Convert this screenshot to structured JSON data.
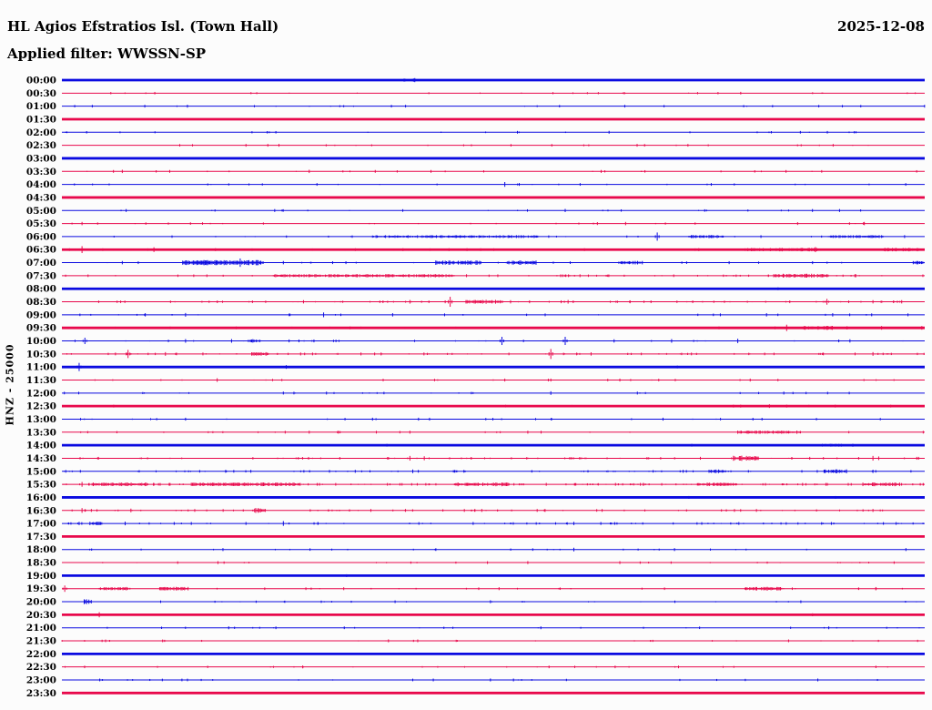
{
  "header": {
    "station": "HL Agios Efstratios Isl. (Town Hall)",
    "filter_label": "Applied filter: WWSSN-SP",
    "date": "2025-12-08"
  },
  "axis": {
    "left_label": "HNZ - 25000"
  },
  "colors": {
    "trace_blue": "#0a0ae0",
    "trace_red": "#e8084b",
    "text": "#000000",
    "background": "#fcfcfc"
  },
  "chart_data": {
    "type": "line",
    "subtype": "helicorder-seismogram",
    "title": "HL Agios Efstratios Isl. (Town Hall)",
    "date": "2025-12-08",
    "filter": "WWSSN-SP",
    "ylabel": "HNZ - 25000",
    "row_duration_minutes": 30,
    "x_range_minutes": [
      0,
      30
    ],
    "grid": false,
    "legend": "none",
    "rows": [
      {
        "label": "00:00",
        "color": "blue",
        "bold": true,
        "noise": 0,
        "events": [
          {
            "m": 12.1,
            "a": 2.2,
            "w": 0.4
          }
        ]
      },
      {
        "label": "00:30",
        "color": "red",
        "bold": false,
        "noise": 1,
        "events": []
      },
      {
        "label": "01:00",
        "color": "blue",
        "bold": false,
        "noise": 1,
        "events": []
      },
      {
        "label": "01:30",
        "color": "red",
        "bold": true,
        "noise": 0,
        "events": []
      },
      {
        "label": "02:00",
        "color": "blue",
        "bold": false,
        "noise": 1,
        "events": []
      },
      {
        "label": "02:30",
        "color": "red",
        "bold": false,
        "noise": 1,
        "events": [
          {
            "m": 6.4,
            "a": 1.5
          },
          {
            "m": 20.0,
            "a": 1.5
          }
        ]
      },
      {
        "label": "03:00",
        "color": "blue",
        "bold": true,
        "noise": 0,
        "events": []
      },
      {
        "label": "03:30",
        "color": "red",
        "bold": false,
        "noise": 1,
        "events": [
          {
            "m": 2.1,
            "a": 1.8
          },
          {
            "m": 8.6,
            "a": 1.8
          }
        ]
      },
      {
        "label": "04:00",
        "color": "blue",
        "bold": false,
        "noise": 1,
        "events": [
          {
            "m": 15.4,
            "a": 2.6
          }
        ]
      },
      {
        "label": "04:30",
        "color": "red",
        "bold": true,
        "noise": 0,
        "events": []
      },
      {
        "label": "05:00",
        "color": "blue",
        "bold": false,
        "noise": 1,
        "events": [
          {
            "m": 17.5,
            "a": 1.8
          }
        ]
      },
      {
        "label": "05:30",
        "color": "red",
        "bold": false,
        "noise": 1,
        "events": [
          {
            "m": 0.7,
            "a": 1.8
          },
          {
            "m": 19.6,
            "a": 1.8
          },
          {
            "m": 27.9,
            "a": 1.8
          }
        ]
      },
      {
        "label": "06:00",
        "color": "blue",
        "bold": false,
        "noise": 1,
        "events": [
          {
            "m": 12.7,
            "a": 1.4,
            "w": 3.8
          },
          {
            "m": 15.6,
            "a": 1.4,
            "w": 1.9
          },
          {
            "m": 20.7,
            "a": 4.5
          },
          {
            "m": 22.4,
            "a": 1.6,
            "w": 1.2
          },
          {
            "m": 27.6,
            "a": 1.4,
            "w": 1.9
          },
          {
            "m": 29.3,
            "a": 1.6
          }
        ]
      },
      {
        "label": "06:30",
        "color": "red",
        "bold": true,
        "noise": 2,
        "events": [
          {
            "m": 0.7,
            "a": 3.8
          },
          {
            "m": 3.2,
            "a": 2.6
          },
          {
            "m": 25.1,
            "a": 1.8,
            "w": 2.5
          },
          {
            "m": 26.2,
            "a": 2.8
          },
          {
            "m": 29.2,
            "a": 1.8,
            "w": 1.3
          }
        ]
      },
      {
        "label": "07:00",
        "color": "blue",
        "bold": false,
        "noise": 1,
        "events": [
          {
            "m": 2.1,
            "a": 1.8
          },
          {
            "m": 4.9,
            "a": 2.4,
            "w": 0.5
          },
          {
            "m": 5.6,
            "a": 2.6,
            "w": 2.8
          },
          {
            "m": 6.2,
            "a": 4.6
          },
          {
            "m": 7.7,
            "a": 1.8
          },
          {
            "m": 13.8,
            "a": 2.2,
            "w": 1.6
          },
          {
            "m": 16.0,
            "a": 2.2,
            "w": 1.0
          },
          {
            "m": 19.8,
            "a": 1.8,
            "w": 0.8
          },
          {
            "m": 23.2,
            "a": 1.6
          },
          {
            "m": 26.1,
            "a": 1.6
          },
          {
            "m": 29.8,
            "a": 1.8,
            "w": 0.4
          }
        ]
      },
      {
        "label": "07:30",
        "color": "red",
        "bold": false,
        "noise": 2,
        "events": [
          {
            "m": 10.5,
            "a": 1.6,
            "w": 6.3
          },
          {
            "m": 25.7,
            "a": 2.0,
            "w": 1.9
          },
          {
            "m": 27.6,
            "a": 1.8
          }
        ]
      },
      {
        "label": "08:00",
        "color": "blue",
        "bold": true,
        "noise": 0,
        "events": [
          {
            "m": 24.9,
            "a": 1.5
          }
        ]
      },
      {
        "label": "08:30",
        "color": "red",
        "bold": false,
        "noise": 2,
        "events": [
          {
            "m": 8.4,
            "a": 1.8
          },
          {
            "m": 12.1,
            "a": 2.0
          },
          {
            "m": 13.5,
            "a": 5.5
          },
          {
            "m": 14.7,
            "a": 2.0,
            "w": 1.3
          },
          {
            "m": 15.6,
            "a": 1.8
          },
          {
            "m": 17.6,
            "a": 2.0
          },
          {
            "m": 26.6,
            "a": 3.2
          },
          {
            "m": 28.2,
            "a": 1.8
          },
          {
            "m": 29.2,
            "a": 1.8
          }
        ]
      },
      {
        "label": "09:00",
        "color": "blue",
        "bold": false,
        "noise": 1,
        "events": [
          {
            "m": 2.9,
            "a": 1.8
          },
          {
            "m": 4.3,
            "a": 2.0
          },
          {
            "m": 9.1,
            "a": 2.6
          },
          {
            "m": 11.5,
            "a": 1.8
          },
          {
            "m": 24.5,
            "a": 1.8
          },
          {
            "m": 26.8,
            "a": 1.8
          }
        ]
      },
      {
        "label": "09:30",
        "color": "red",
        "bold": true,
        "noise": 1,
        "events": [
          {
            "m": 25.2,
            "a": 3.5
          },
          {
            "m": 26.3,
            "a": 2.0,
            "w": 1.0
          },
          {
            "m": 27.3,
            "a": 1.8
          },
          {
            "m": 28.5,
            "a": 2.0
          },
          {
            "m": 29.9,
            "a": 2.0
          }
        ]
      },
      {
        "label": "10:00",
        "color": "blue",
        "bold": false,
        "noise": 1,
        "events": [
          {
            "m": 0.8,
            "a": 3.5
          },
          {
            "m": 4.3,
            "a": 2.0
          },
          {
            "m": 5.9,
            "a": 2.0
          },
          {
            "m": 6.7,
            "a": 1.8,
            "w": 0.45
          },
          {
            "m": 7.9,
            "a": 1.6
          },
          {
            "m": 15.3,
            "a": 4.5
          },
          {
            "m": 17.5,
            "a": 4.5
          },
          {
            "m": 19.2,
            "a": 1.8
          },
          {
            "m": 21.2,
            "a": 2.0
          },
          {
            "m": 23.5,
            "a": 2.4
          },
          {
            "m": 27.4,
            "a": 1.8
          }
        ]
      },
      {
        "label": "10:30",
        "color": "red",
        "bold": false,
        "noise": 2,
        "events": [
          {
            "m": 2.3,
            "a": 4.5
          },
          {
            "m": 3.6,
            "a": 2.0
          },
          {
            "m": 6.9,
            "a": 1.8,
            "w": 0.6
          },
          {
            "m": 8.3,
            "a": 1.6
          },
          {
            "m": 10.4,
            "a": 1.6
          },
          {
            "m": 11.1,
            "a": 1.6
          },
          {
            "m": 17.0,
            "a": 5.5
          },
          {
            "m": 18.4,
            "a": 1.8
          },
          {
            "m": 28.2,
            "a": 2.0
          }
        ]
      },
      {
        "label": "11:00",
        "color": "blue",
        "bold": true,
        "noise": 0,
        "events": [
          {
            "m": 0.6,
            "a": 4.5
          },
          {
            "m": 7.8,
            "a": 2.0
          },
          {
            "m": 21.4,
            "a": 1.5
          }
        ]
      },
      {
        "label": "11:30",
        "color": "red",
        "bold": false,
        "noise": 1,
        "events": [
          {
            "m": 5.4,
            "a": 2.0
          },
          {
            "m": 15.4,
            "a": 1.6
          },
          {
            "m": 17.0,
            "a": 1.6
          }
        ]
      },
      {
        "label": "12:00",
        "color": "blue",
        "bold": false,
        "noise": 1,
        "events": [
          {
            "m": 7.7,
            "a": 1.6
          },
          {
            "m": 9.2,
            "a": 1.6
          },
          {
            "m": 17.0,
            "a": 2.0
          },
          {
            "m": 25.1,
            "a": 1.6
          }
        ]
      },
      {
        "label": "12:30",
        "color": "red",
        "bold": true,
        "noise": 1,
        "events": [
          {
            "m": 23.6,
            "a": 1.6
          },
          {
            "m": 24.6,
            "a": 2.0
          },
          {
            "m": 25.2,
            "a": 1.6
          }
        ]
      },
      {
        "label": "13:00",
        "color": "blue",
        "bold": false,
        "noise": 1,
        "events": [
          {
            "m": 4.3,
            "a": 1.6
          },
          {
            "m": 10.8,
            "a": 1.6
          },
          {
            "m": 12.4,
            "a": 1.6
          },
          {
            "m": 20.9,
            "a": 1.6
          }
        ]
      },
      {
        "label": "13:30",
        "color": "red",
        "bold": false,
        "noise": 1,
        "events": [
          {
            "m": 8.6,
            "a": 1.6
          },
          {
            "m": 12.1,
            "a": 1.6
          },
          {
            "m": 16.2,
            "a": 1.6
          },
          {
            "m": 24.6,
            "a": 1.6,
            "w": 2.2
          }
        ]
      },
      {
        "label": "14:00",
        "color": "blue",
        "bold": true,
        "noise": 0,
        "events": [
          {
            "m": 11.3,
            "a": 1.5
          },
          {
            "m": 21.9,
            "a": 1.5
          },
          {
            "m": 26.8,
            "a": 1.6,
            "w": 0.8
          },
          {
            "m": 27.5,
            "a": 1.6
          }
        ]
      },
      {
        "label": "14:30",
        "color": "red",
        "bold": false,
        "noise": 2,
        "events": [
          {
            "m": 12.1,
            "a": 2.6
          },
          {
            "m": 12.6,
            "a": 2.2
          },
          {
            "m": 22.2,
            "a": 1.6
          },
          {
            "m": 23.8,
            "a": 2.6,
            "w": 0.9
          },
          {
            "m": 28.2,
            "a": 2.6
          },
          {
            "m": 28.4,
            "a": 2.0
          }
        ]
      },
      {
        "label": "15:00",
        "color": "blue",
        "bold": false,
        "noise": 2,
        "events": [
          {
            "m": 10.2,
            "a": 1.6
          },
          {
            "m": 12.2,
            "a": 2.0
          },
          {
            "m": 21.6,
            "a": 1.6
          },
          {
            "m": 22.8,
            "a": 1.8,
            "w": 0.6
          },
          {
            "m": 26.9,
            "a": 2.0,
            "w": 0.8
          },
          {
            "m": 28.2,
            "a": 1.8
          }
        ]
      },
      {
        "label": "15:30",
        "color": "red",
        "bold": false,
        "noise": 3,
        "events": [
          {
            "m": 0.7,
            "a": 2.6
          },
          {
            "m": 2.0,
            "a": 1.8,
            "w": 1.9
          },
          {
            "m": 6.4,
            "a": 1.8,
            "w": 3.8
          },
          {
            "m": 14.6,
            "a": 2.0,
            "w": 1.9
          },
          {
            "m": 22.8,
            "a": 1.8,
            "w": 1.3
          },
          {
            "m": 28.5,
            "a": 2.0,
            "w": 1.3
          }
        ]
      },
      {
        "label": "16:00",
        "color": "blue",
        "bold": true,
        "noise": 0,
        "events": [
          {
            "m": 21.8,
            "a": 1.5
          },
          {
            "m": 26.9,
            "a": 1.5
          }
        ]
      },
      {
        "label": "16:30",
        "color": "red",
        "bold": false,
        "noise": 2,
        "events": [
          {
            "m": 0.7,
            "a": 2.6
          },
          {
            "m": 2.4,
            "a": 2.0
          },
          {
            "m": 6.9,
            "a": 2.6,
            "w": 0.4
          },
          {
            "m": 14.6,
            "a": 1.6
          },
          {
            "m": 16.8,
            "a": 1.6
          },
          {
            "m": 28.2,
            "a": 1.6
          }
        ]
      },
      {
        "label": "17:00",
        "color": "blue",
        "bold": false,
        "noise": 2,
        "events": [
          {
            "m": 0.6,
            "a": 1.8
          },
          {
            "m": 1.2,
            "a": 1.8,
            "w": 0.45
          },
          {
            "m": 2.2,
            "a": 2.0
          },
          {
            "m": 4.5,
            "a": 1.6
          },
          {
            "m": 6.4,
            "a": 1.6
          },
          {
            "m": 7.7,
            "a": 2.6
          },
          {
            "m": 8.9,
            "a": 1.6
          },
          {
            "m": 14.3,
            "a": 1.6
          },
          {
            "m": 17.8,
            "a": 1.8
          }
        ]
      },
      {
        "label": "17:30",
        "color": "red",
        "bold": true,
        "noise": 0,
        "events": []
      },
      {
        "label": "18:00",
        "color": "blue",
        "bold": false,
        "noise": 1,
        "events": [
          {
            "m": 5.6,
            "a": 1.6
          },
          {
            "m": 17.8,
            "a": 2.0
          },
          {
            "m": 21.3,
            "a": 1.6
          }
        ]
      },
      {
        "label": "18:30",
        "color": "red",
        "bold": false,
        "noise": 1,
        "events": [
          {
            "m": 16.2,
            "a": 1.6
          },
          {
            "m": 19.4,
            "a": 1.6
          }
        ]
      },
      {
        "label": "19:00",
        "color": "blue",
        "bold": true,
        "noise": 0,
        "events": [
          {
            "m": 9.9,
            "a": 1.5
          }
        ]
      },
      {
        "label": "19:30",
        "color": "red",
        "bold": false,
        "noise": 1,
        "events": [
          {
            "m": 0.1,
            "a": 3.5
          },
          {
            "m": 1.8,
            "a": 1.8,
            "w": 1.0
          },
          {
            "m": 3.9,
            "a": 1.8,
            "w": 1.0
          },
          {
            "m": 9.8,
            "a": 1.6
          },
          {
            "m": 15.2,
            "a": 1.6
          },
          {
            "m": 24.4,
            "a": 1.8,
            "w": 1.3
          },
          {
            "m": 28.3,
            "a": 1.8
          }
        ]
      },
      {
        "label": "20:00",
        "color": "blue",
        "bold": false,
        "noise": 1,
        "events": [
          {
            "m": 0.9,
            "a": 2.6,
            "w": 0.25
          },
          {
            "m": 14.9,
            "a": 1.6
          }
        ]
      },
      {
        "label": "20:30",
        "color": "red",
        "bold": true,
        "noise": 0,
        "events": [
          {
            "m": 1.3,
            "a": 2.8
          },
          {
            "m": 26.1,
            "a": 1.6
          }
        ]
      },
      {
        "label": "21:00",
        "color": "blue",
        "bold": false,
        "noise": 1,
        "events": [
          {
            "m": 5.8,
            "a": 1.6
          }
        ]
      },
      {
        "label": "21:30",
        "color": "red",
        "bold": false,
        "noise": 1,
        "events": []
      },
      {
        "label": "22:00",
        "color": "blue",
        "bold": true,
        "noise": 0,
        "events": []
      },
      {
        "label": "22:30",
        "color": "red",
        "bold": false,
        "noise": 1,
        "events": []
      },
      {
        "label": "23:00",
        "color": "blue",
        "bold": false,
        "noise": 1,
        "events": [
          {
            "m": 14.9,
            "a": 1.6
          }
        ]
      },
      {
        "label": "23:30",
        "color": "red",
        "bold": true,
        "noise": 0,
        "events": []
      }
    ]
  }
}
